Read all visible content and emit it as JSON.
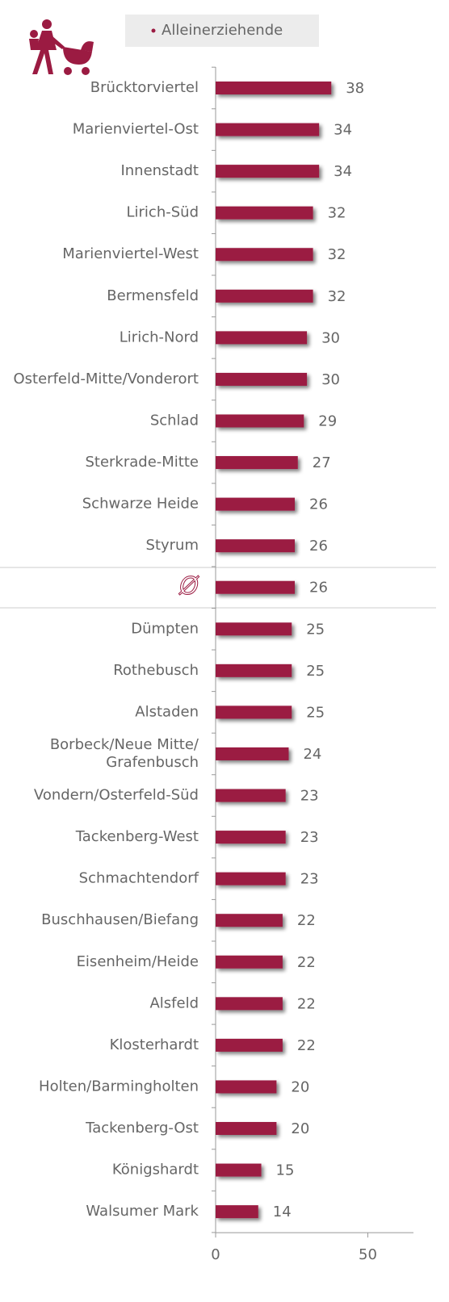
{
  "chart_data": {
    "type": "barh",
    "legend": "Alleinerziehende",
    "categories": [
      "Brücktorviertel",
      "Marienviertel-Ost",
      "Innenstadt",
      "Lirich-Süd",
      "Marienviertel-West",
      "Bermensfeld",
      "Lirich-Nord",
      "Osterfeld-Mitte/Vonderort",
      "Schlad",
      "Sterkrade-Mitte",
      "Schwarze Heide",
      "Styrum",
      "Ø",
      "Dümpten",
      "Rothebusch",
      "Alstaden",
      "Borbeck/Neue Mitte/Grafenbusch",
      "Vondern/Osterfeld-Süd",
      "Tackenberg-West",
      "Schmachtendorf",
      "Buschhausen/Biefang",
      "Eisenheim/Heide",
      "Alsfeld",
      "Klosterhardt",
      "Holten/Barmingholten",
      "Tackenberg-Ost",
      "Königshardt",
      "Walsumer Mark"
    ],
    "values": [
      38,
      34,
      34,
      32,
      32,
      32,
      30,
      30,
      29,
      27,
      26,
      26,
      26,
      25,
      25,
      25,
      24,
      23,
      23,
      23,
      22,
      22,
      22,
      22,
      20,
      20,
      15,
      14
    ],
    "color": "#9b1b42",
    "xlim": [
      0,
      65
    ],
    "xticks": [
      0,
      50
    ]
  }
}
